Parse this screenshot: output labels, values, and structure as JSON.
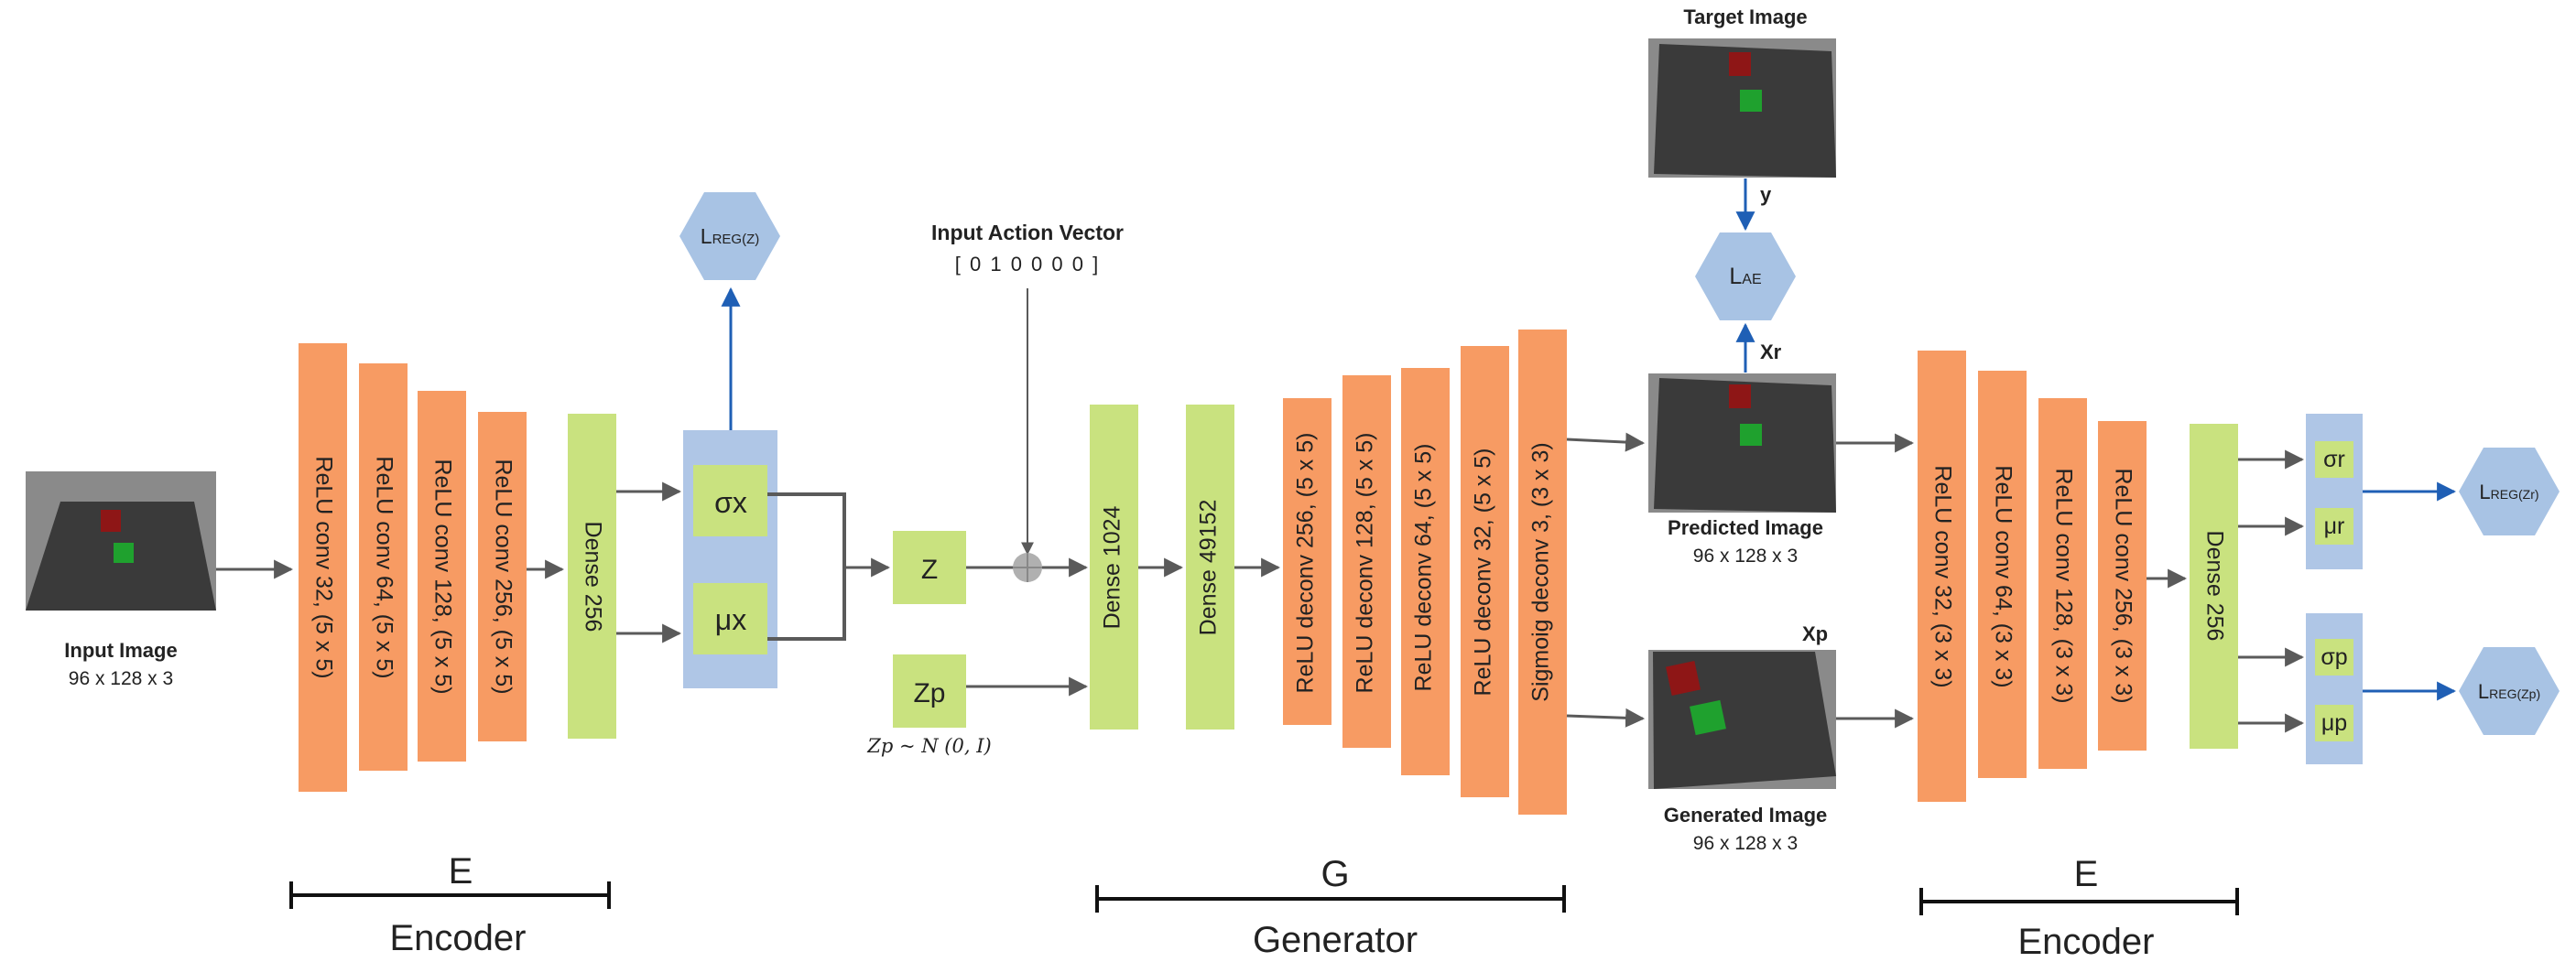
{
  "colors": {
    "conv": "#F79B63",
    "dense": "#C9E27F",
    "latent": "#AFC6E6",
    "hex": "#A8C3E4",
    "arrow_gray": "#5A5A5A",
    "arrow_blue": "#1F5FB5",
    "image_bg": "#8A8A8A",
    "image_floor": "#3A3A3A",
    "cube_red": "#8E1616",
    "cube_green": "#1FA12E"
  },
  "input_image": {
    "title": "Input Image",
    "dims": "96 x 128 x 3"
  },
  "encoder1": {
    "layers": [
      "ReLU conv  32, (5 x 5)",
      "ReLU conv  64, (5 x 5)",
      "ReLU conv  128, (5 x 5)",
      "ReLU conv  256, (5 x 5)"
    ],
    "dense": "Dense  256",
    "sigma": "σx",
    "mu": "μx",
    "loss_main": "L",
    "loss_sub": "REG(Z)",
    "letter": "E",
    "name": "Encoder"
  },
  "latent": {
    "z": "Z",
    "zp": "Zp",
    "zp_dist": "Zp ~ N (0, I)"
  },
  "action": {
    "title": "Input Action Vector",
    "vector": "[ 0 1 0 0 0 0 ]"
  },
  "generator": {
    "dense1": "Dense  1024",
    "dense2": "Dense  49152",
    "layers": [
      "ReLU deconv  256, (5 x 5)",
      "ReLU deconv  128, (5 x 5)",
      "ReLU deconv  64, (5 x 5)",
      "ReLU deconv  32, (5 x 5)",
      "Sigmoig deconv  3, (3 x 3)"
    ],
    "letter": "G",
    "name": "Generator"
  },
  "target_image": {
    "title": "Target Image",
    "y_label": "y"
  },
  "loss_ae": {
    "main": "L",
    "sub": "AE"
  },
  "predicted_image": {
    "title": "Predicted Image",
    "dims": "96 x 128 x 3",
    "xr_label": "Xr"
  },
  "generated_image": {
    "title": "Generated Image",
    "dims": "96 x 128 x 3",
    "xp_label": "Xp"
  },
  "encoder2": {
    "layers": [
      "ReLU conv  32, (3 x 3)",
      "ReLU conv  64, (3 x 3)",
      "ReLU conv  128, (3 x 3)",
      "ReLU conv  256, (3 x 3)"
    ],
    "dense": "Dense  256",
    "sigma_r": "σr",
    "mu_r": "μr",
    "sigma_p": "σp",
    "mu_p": "μp",
    "loss_r_main": "L",
    "loss_r_sub": "REG(Zr)",
    "loss_p_main": "L",
    "loss_p_sub": "REG(Zp)",
    "letter": "E",
    "name": "Encoder"
  }
}
